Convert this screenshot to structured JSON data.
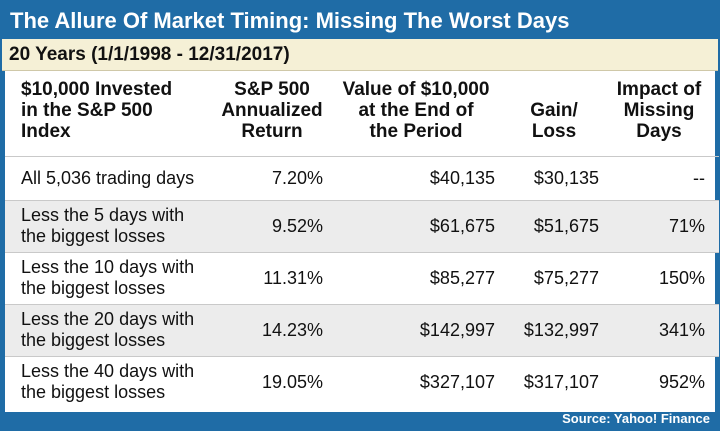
{
  "title": "The Allure Of Market Timing: Missing The Worst Days",
  "subtitle": "20 Years (1/1/1998 - 12/31/2017)",
  "source": "Source: Yahoo! Finance",
  "colors": {
    "frame": "#1f6ca6",
    "subtitle_bg": "#f5f0d6",
    "alt_row": "#ececec"
  },
  "chart_data": {
    "type": "table",
    "columns": [
      {
        "line1": "$10,000 Invested",
        "line2": "in the S&P 500 Index",
        "line3": ""
      },
      {
        "line1": "S&P 500",
        "line2": "Annualized",
        "line3": "Return"
      },
      {
        "line1": "Value of $10,000",
        "line2": "at the End of",
        "line3": "the Period"
      },
      {
        "line1": "",
        "line2": "Gain/",
        "line3": "Loss"
      },
      {
        "line1": "Impact of",
        "line2": "Missing",
        "line3": "Days"
      }
    ],
    "rows": [
      {
        "label1": "All 5,036 trading days",
        "label2": "",
        "return": "7.20%",
        "value": "$40,135",
        "gain": "$30,135",
        "impact": "--"
      },
      {
        "label1": "Less the 5 days with",
        "label2": "the biggest losses",
        "return": "9.52%",
        "value": "$61,675",
        "gain": "$51,675",
        "impact": "71%"
      },
      {
        "label1": "Less the 10 days with",
        "label2": "the biggest losses",
        "return": "11.31%",
        "value": "$85,277",
        "gain": "$75,277",
        "impact": "150%"
      },
      {
        "label1": "Less the 20 days with",
        "label2": "the biggest losses",
        "return": "14.23%",
        "value": "$142,997",
        "gain": "$132,997",
        "impact": "341%"
      },
      {
        "label1": "Less the 40 days with",
        "label2": "the biggest losses",
        "return": "19.05%",
        "value": "$327,107",
        "gain": "$317,107",
        "impact": "952%"
      }
    ]
  }
}
